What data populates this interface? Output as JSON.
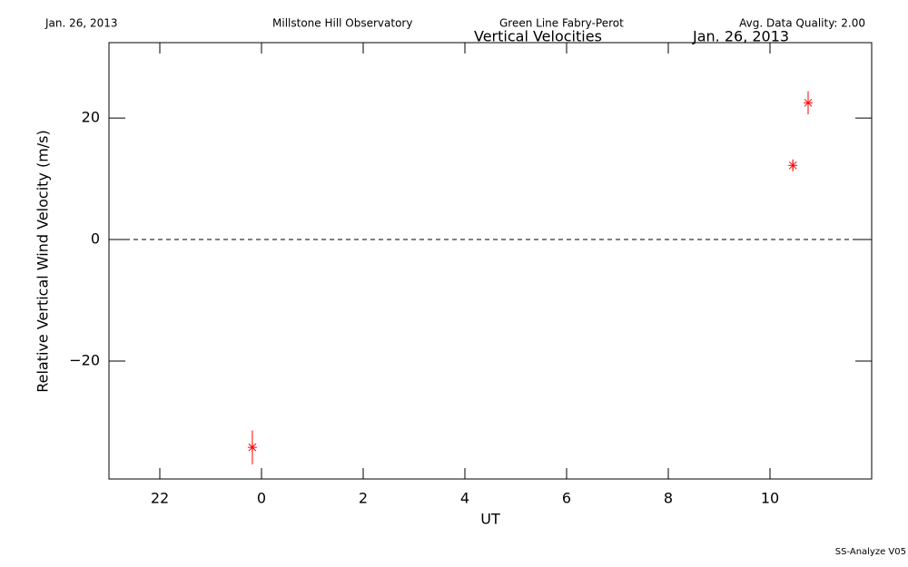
{
  "chart_data": {
    "type": "scatter",
    "header": [
      "Jan. 26, 2013",
      "Millstone Hill Observatory",
      "Green Line Fabry-Perot",
      "Avg. Data Quality: 2.00"
    ],
    "title": "Vertical Velocities",
    "subtitle": "Jan. 26, 2013",
    "xlabel": "UT",
    "ylabel": "Relative Vertical Wind Velocity (m/s)",
    "footer": "SS-Analyze V05",
    "xlim": [
      -3,
      12
    ],
    "xticks": [
      {
        "value": -2,
        "label": "22"
      },
      0,
      2,
      4,
      6,
      8,
      10
    ],
    "ylim": [
      -39.4,
      32.4
    ],
    "yticks": [
      {
        "value": -20,
        "label": "−20"
      },
      0,
      20
    ],
    "hline": 0,
    "series": [
      {
        "color": "#ff0000",
        "x": [
          -0.18,
          10.45,
          10.75
        ],
        "values": [
          -34.2,
          12.2,
          22.5
        ],
        "errors": [
          2.8,
          1.0,
          1.9
        ]
      }
    ]
  }
}
